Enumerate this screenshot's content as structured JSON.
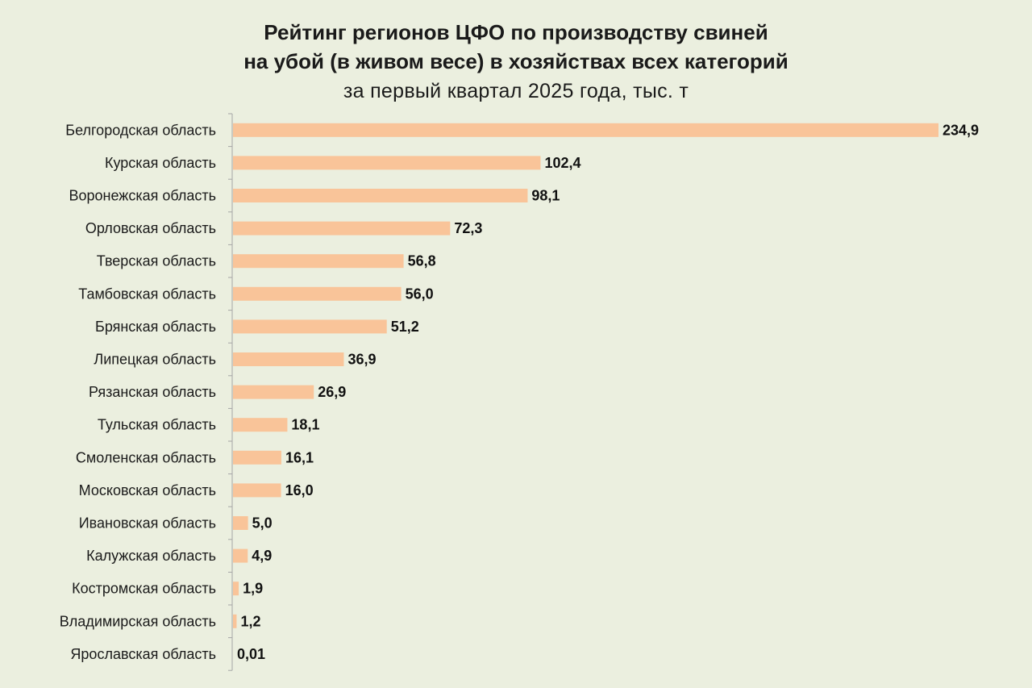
{
  "chart_data": {
    "type": "bar",
    "orientation": "horizontal",
    "title_line1": "Рейтинг регионов ЦФО по производству свиней",
    "title_line2": "на убой (в живом весе) в хозяйствах всех категорий",
    "subtitle": "за первый квартал 2025 года, тыс. т",
    "xlabel": "",
    "ylabel": "",
    "bar_color": "#f9c499",
    "grid": false,
    "legend": "none",
    "categories": [
      "Белгородская область",
      "Курская область",
      "Воронежская область",
      "Орловская область",
      "Тверская область",
      "Тамбовская область",
      "Брянская область",
      "Липецкая область",
      "Рязанская область",
      "Тульская область",
      "Смоленская область",
      "Московская область",
      "Ивановская область",
      "Калужская область",
      "Костромская область",
      "Владимирская область",
      "Ярославская область"
    ],
    "values": [
      234.9,
      102.4,
      98.1,
      72.3,
      56.8,
      56.0,
      51.2,
      36.9,
      26.9,
      18.1,
      16.1,
      16.0,
      5.0,
      4.9,
      1.9,
      1.2,
      0.01
    ],
    "value_labels": [
      "234,9",
      "102,4",
      "98,1",
      "72,3",
      "56,8",
      "56,0",
      "51,2",
      "36,9",
      "26,9",
      "18,1",
      "16,1",
      "16,0",
      "5,0",
      "4,9",
      "1,9",
      "1,2",
      "0,01"
    ]
  }
}
